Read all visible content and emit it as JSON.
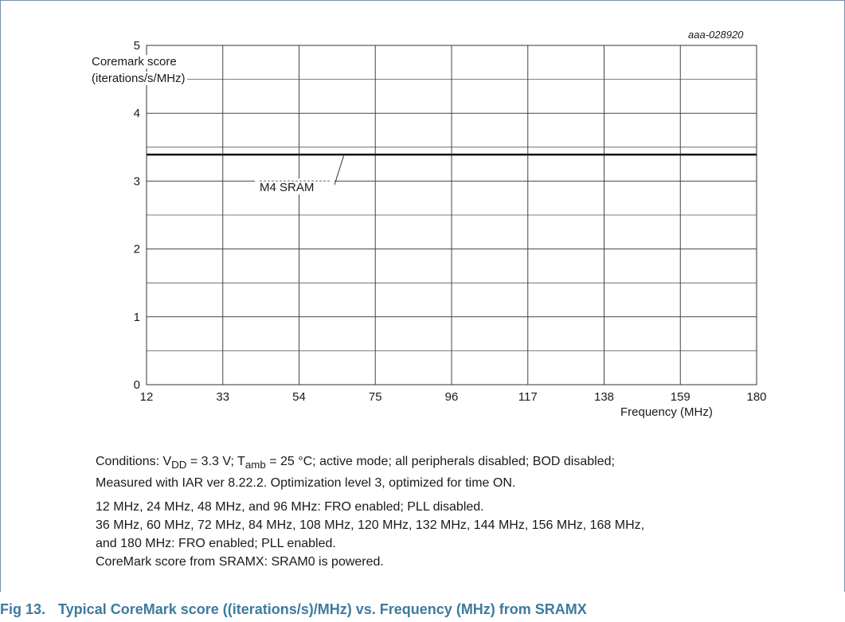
{
  "figure_ref": "aaa-028920",
  "y_axis_label_line1": "Coremark score",
  "y_axis_label_line2": "(iterations/s/MHz)",
  "x_axis_label": "Frequency (MHz)",
  "chart_data": {
    "type": "line",
    "title": "",
    "xlabel": "Frequency (MHz)",
    "ylabel": "Coremark score (iterations/s/MHz)",
    "xlim": [
      12,
      180
    ],
    "ylim": [
      0,
      5
    ],
    "x_ticks": [
      12,
      33,
      54,
      75,
      96,
      117,
      138,
      159,
      180
    ],
    "y_ticks": [
      0,
      1,
      2,
      3,
      4,
      5
    ],
    "grid": true,
    "series": [
      {
        "name": "M4 SRAM",
        "x": [
          12,
          180
        ],
        "values": [
          3.39,
          3.39
        ]
      }
    ]
  },
  "notes": {
    "line1_a": "Conditions: V",
    "line1_sub1": "DD",
    "line1_b": " = 3.3 V; T",
    "line1_sub2": "amb",
    "line1_c": " = 25 °C; active mode; all peripherals disabled; BOD disabled;",
    "line2": "Measured with IAR ver 8.22.2. Optimization level 3, optimized for time ON.",
    "line3": "12 MHz, 24 MHz, 48 MHz, and 96 MHz: FRO enabled; PLL disabled.",
    "line4": "36 MHz, 60 MHz, 72 MHz, 84 MHz, 108 MHz, 120 MHz, 132 MHz, 144 MHz, 156 MHz, 168 MHz,",
    "line5": "and 180 MHz: FRO enabled; PLL enabled.",
    "line6": "CoreMark score from SRAMX: SRAM0 is powered."
  },
  "caption": {
    "number": "Fig 13.",
    "text": "Typical CoreMark score ((iterations/s)/MHz) vs. Frequency (MHz) from SRAMX"
  }
}
